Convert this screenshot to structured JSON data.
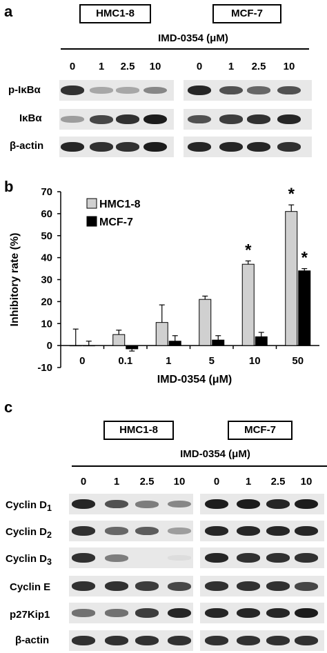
{
  "panel_a": {
    "letter": "a",
    "cell_lines": [
      "HMC1-8",
      "MCF-7"
    ],
    "treatment_label": "IMD-0354 (μM)",
    "doses": [
      "0",
      "1",
      "2.5",
      "10"
    ],
    "rows": [
      "p-IκBα",
      "IκBα",
      "β-actin"
    ],
    "band_intensity": {
      "HMC1-8": [
        [
          0.85,
          0.3,
          0.3,
          0.45
        ],
        [
          0.35,
          0.75,
          0.85,
          0.95
        ],
        [
          0.9,
          0.85,
          0.85,
          0.95
        ]
      ],
      "MCF-7": [
        [
          0.9,
          0.7,
          0.6,
          0.7
        ],
        [
          0.7,
          0.8,
          0.85,
          0.9
        ],
        [
          0.9,
          0.9,
          0.9,
          0.85
        ]
      ]
    }
  },
  "panel_b": {
    "letter": "b",
    "chart_data": {
      "type": "bar",
      "categories": [
        "0",
        "0.1",
        "1",
        "5",
        "10",
        "50"
      ],
      "series": [
        {
          "name": "HMC1-8",
          "color": "#d0d0d0",
          "values": [
            0,
            5,
            10.5,
            21,
            37,
            61
          ],
          "errors": [
            7.5,
            2,
            8,
            1.5,
            1.5,
            3
          ]
        },
        {
          "name": "MCF-7",
          "color": "#000000",
          "values": [
            0,
            -1.5,
            2,
            2.5,
            4,
            34
          ],
          "errors": [
            2,
            1,
            2.5,
            2,
            2,
            1
          ]
        }
      ],
      "significance": [
        {
          "category": "10",
          "series": "HMC1-8",
          "mark": "*"
        },
        {
          "category": "50",
          "series": "HMC1-8",
          "mark": "*"
        },
        {
          "category": "50",
          "series": "MCF-7",
          "mark": "*"
        }
      ],
      "xlabel": "IMD-0354 (μM)",
      "ylabel": "Inhibitory rate (%)",
      "ylim": [
        -10,
        70
      ],
      "yticks": [
        "70",
        "60",
        "50",
        "40",
        "30",
        "20",
        "10",
        "0",
        "-10"
      ],
      "legend_position": "top-left",
      "grid": false
    }
  },
  "panel_c": {
    "letter": "c",
    "cell_lines": [
      "HMC1-8",
      "MCF-7"
    ],
    "treatment_label": "IMD-0354 (μM)",
    "doses": [
      "0",
      "1",
      "2.5",
      "10"
    ],
    "rows": [
      {
        "label": "Cyclin D",
        "sub": "1"
      },
      {
        "label": "Cyclin D",
        "sub": "2"
      },
      {
        "label": "Cyclin D",
        "sub": "3"
      },
      {
        "label": "Cyclin E",
        "sub": ""
      },
      {
        "label": "p27Kip1",
        "sub": ""
      },
      {
        "label": "β-actin",
        "sub": ""
      }
    ],
    "band_intensity": {
      "HMC1-8": [
        [
          0.9,
          0.7,
          0.5,
          0.45
        ],
        [
          0.85,
          0.6,
          0.65,
          0.35
        ],
        [
          0.85,
          0.5,
          0,
          0.05
        ],
        [
          0.85,
          0.85,
          0.8,
          0.75
        ],
        [
          0.55,
          0.55,
          0.8,
          0.9
        ],
        [
          0.85,
          0.85,
          0.85,
          0.85
        ]
      ],
      "MCF-7": [
        [
          0.95,
          0.95,
          0.9,
          0.95
        ],
        [
          0.9,
          0.9,
          0.9,
          0.9
        ],
        [
          0.9,
          0.85,
          0.85,
          0.85
        ],
        [
          0.85,
          0.85,
          0.85,
          0.75
        ],
        [
          0.9,
          0.9,
          0.9,
          0.95
        ],
        [
          0.85,
          0.85,
          0.85,
          0.85
        ]
      ]
    }
  }
}
